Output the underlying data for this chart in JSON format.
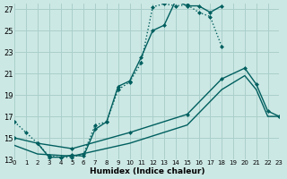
{
  "xlabel": "Humidex (Indice chaleur)",
  "bg_color": "#cce8e4",
  "grid_color": "#aacfcb",
  "line_color": "#005f5f",
  "xlim": [
    0,
    23
  ],
  "ylim": [
    13,
    27.5
  ],
  "xticks": [
    0,
    1,
    2,
    3,
    4,
    5,
    6,
    7,
    8,
    9,
    10,
    11,
    12,
    13,
    14,
    15,
    16,
    17,
    18,
    19,
    20,
    21,
    22,
    23
  ],
  "yticks": [
    13,
    15,
    17,
    19,
    21,
    23,
    25,
    27
  ],
  "s1_x": [
    0,
    1,
    2,
    3,
    4,
    5,
    6,
    7,
    8,
    9,
    10,
    11,
    12,
    13,
    14,
    15,
    16,
    17,
    18
  ],
  "s1_y": [
    16.5,
    15.5,
    14.5,
    13.3,
    13.2,
    13.2,
    13.5,
    16.2,
    16.5,
    19.5,
    20.2,
    22.0,
    27.2,
    27.5,
    27.3,
    27.4,
    26.7,
    26.3,
    23.5
  ],
  "s2_x": [
    2,
    3,
    4,
    5,
    6,
    7,
    8,
    9,
    10,
    11,
    12,
    13,
    14,
    15,
    16,
    17,
    18
  ],
  "s2_y": [
    14.5,
    13.2,
    13.2,
    13.4,
    13.3,
    15.8,
    16.5,
    19.8,
    20.3,
    22.5,
    25.0,
    25.5,
    27.8,
    27.3,
    27.3,
    26.7,
    27.3
  ],
  "s3_x": [
    0,
    2,
    5,
    10,
    15,
    18,
    20,
    21,
    22,
    23
  ],
  "s3_y": [
    15.0,
    14.5,
    14.0,
    15.5,
    17.2,
    20.5,
    21.5,
    20.0,
    17.5,
    17.0
  ],
  "s4_x": [
    0,
    2,
    5,
    10,
    15,
    18,
    20,
    21,
    22,
    23
  ],
  "s4_y": [
    14.3,
    13.5,
    13.3,
    14.5,
    16.2,
    19.5,
    20.8,
    19.5,
    17.0,
    17.0
  ]
}
